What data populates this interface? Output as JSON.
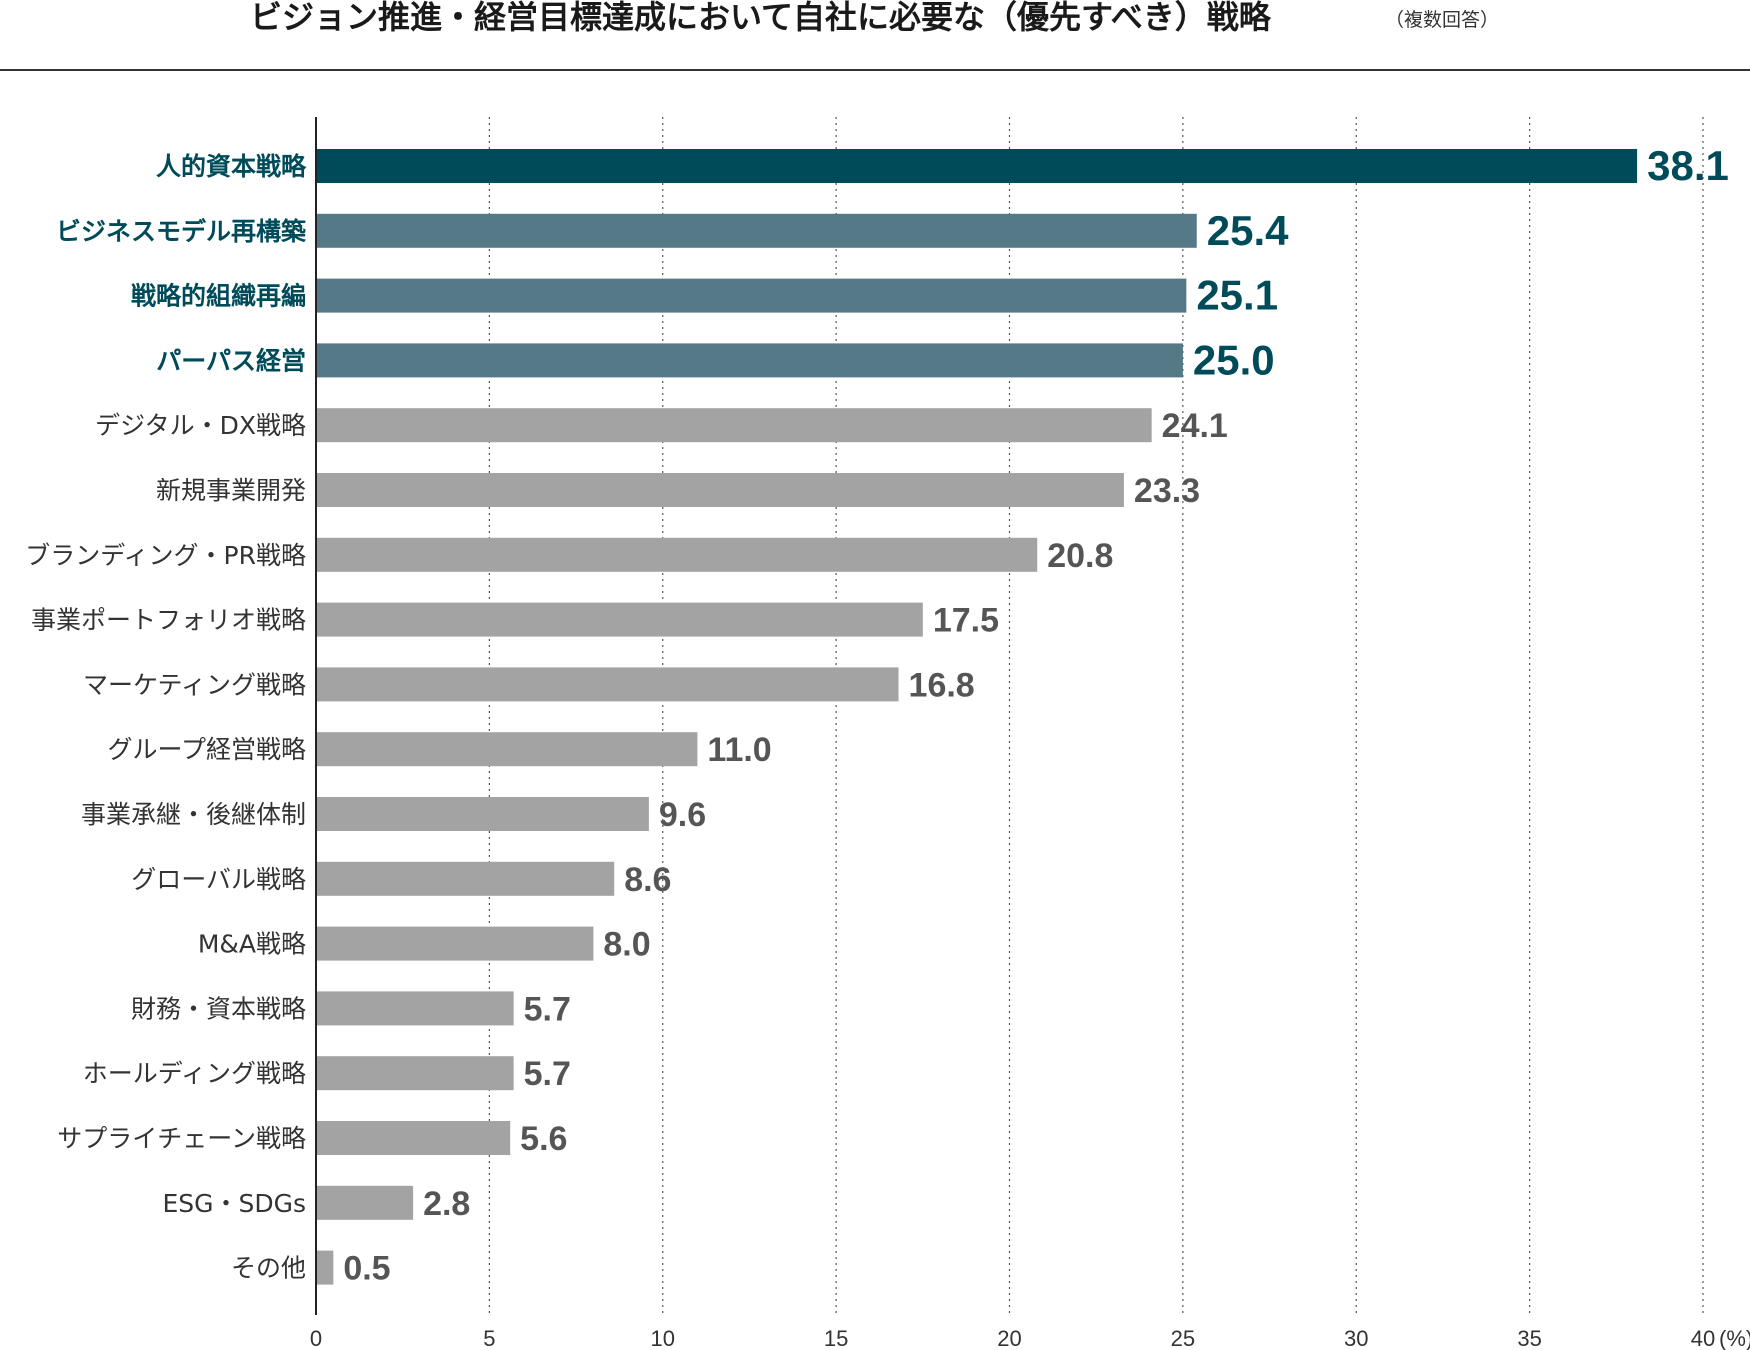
{
  "title": "ビジョン推進・経営目標達成において自社に必要な（優先すべき）戦略",
  "title_note": "（複数回答）",
  "colors": {
    "primary": "#004b5a",
    "secondary": "#567987",
    "gray": "#a3a3a3",
    "label_highlight": "#004b5a",
    "label_normal": "#333333",
    "value_gray": "#555555"
  },
  "chart_data": {
    "type": "bar",
    "orientation": "horizontal",
    "title": "ビジョン推進・経営目標達成において自社に必要な（優先すべき）戦略",
    "subtitle": "（複数回答）",
    "xlim": [
      0,
      40
    ],
    "x_ticks": [
      "0",
      "5",
      "10",
      "15",
      "20",
      "25",
      "30",
      "35",
      "40"
    ],
    "x_unit": "(%)",
    "grid": "vertical dotted",
    "categories": [
      "人的資本戦略",
      "ビジネスモデル再構築",
      "戦略的組織再編",
      "パーパス経営",
      "デジタル・DX戦略",
      "新規事業開発",
      "ブランディング・PR戦略",
      "事業ポートフォリオ戦略",
      "マーケティング戦略",
      "グループ経営戦略",
      "事業承継・後継体制",
      "グローバル戦略",
      "M&A戦略",
      "財務・資本戦略",
      "ホールディング戦略",
      "サプライチェーン戦略",
      "ESG・SDGs",
      "その他"
    ],
    "values": [
      38.1,
      25.4,
      25.1,
      25.0,
      24.1,
      23.3,
      20.8,
      17.5,
      16.8,
      11.0,
      9.6,
      8.6,
      8.0,
      5.7,
      5.7,
      5.6,
      2.8,
      0.5
    ],
    "value_labels": [
      "38.1",
      "25.4",
      "25.1",
      "25.0",
      "24.1",
      "23.3",
      "20.8",
      "17.5",
      "16.8",
      "11.0",
      "9.6",
      "8.6",
      "8.0",
      "5.7",
      "5.7",
      "5.6",
      "2.8",
      "0.5"
    ],
    "tiers": [
      "primary",
      "secondary",
      "secondary",
      "secondary",
      "gray",
      "gray",
      "gray",
      "gray",
      "gray",
      "gray",
      "gray",
      "gray",
      "gray",
      "gray",
      "gray",
      "gray",
      "gray",
      "gray"
    ]
  }
}
